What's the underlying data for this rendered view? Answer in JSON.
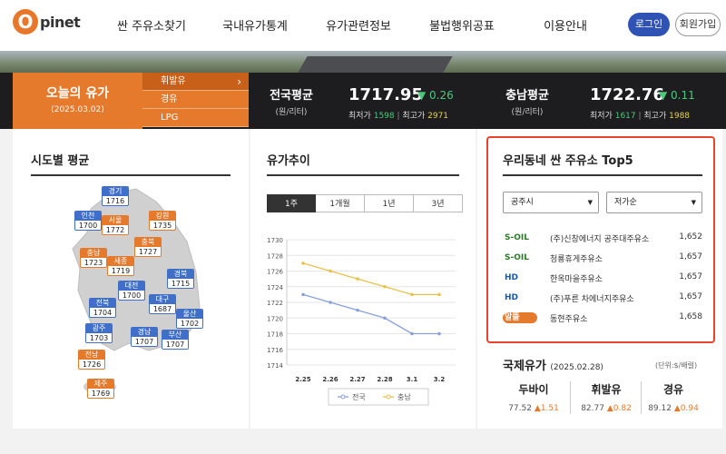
{
  "header": {
    "logo_letter": "O",
    "logo_text": "pinet",
    "nav": [
      "싼 주유소찾기",
      "국내유가통계",
      "유가관련정보",
      "불법행위공표",
      "이용안내"
    ],
    "login": "로그인",
    "join": "회원가입"
  },
  "today": {
    "title": "오늘의 유가",
    "date": "(2025.03.02)",
    "fuel_tabs": [
      "휘발유",
      "경유",
      "LPG"
    ],
    "active_fuel": "휘발유"
  },
  "national": {
    "label": "전국평균",
    "unit": "(원/리터)",
    "value": "1717.95",
    "change": "▼ 0.26",
    "min_label": "최저가",
    "min": "1598",
    "max_label": "최고가",
    "max": "2971"
  },
  "chungnam": {
    "label": "충남평균",
    "unit": "(원/리터)",
    "value": "1722.76",
    "change": "▼ 0.11",
    "min_label": "최저가",
    "min": "1617",
    "max_label": "최고가",
    "max": "1988"
  },
  "sections": {
    "regional": "시도별 평균",
    "trend": "유가추이",
    "top5": "우리동네 싼 주유소 Top5"
  },
  "regions": [
    {
      "name": "경기",
      "value": "1716",
      "color": "blue"
    },
    {
      "name": "인천",
      "value": "1700",
      "color": "blue"
    },
    {
      "name": "서울",
      "value": "1772",
      "color": "orange"
    },
    {
      "name": "강원",
      "value": "1735",
      "color": "orange"
    },
    {
      "name": "충북",
      "value": "1727",
      "color": "orange"
    },
    {
      "name": "충남",
      "value": "1723",
      "color": "orange"
    },
    {
      "name": "세종",
      "value": "1719",
      "color": "orange"
    },
    {
      "name": "경북",
      "value": "1715",
      "color": "blue"
    },
    {
      "name": "대전",
      "value": "1700",
      "color": "blue"
    },
    {
      "name": "전북",
      "value": "1704",
      "color": "blue"
    },
    {
      "name": "대구",
      "value": "1687",
      "color": "blue"
    },
    {
      "name": "울산",
      "value": "1702",
      "color": "blue"
    },
    {
      "name": "광주",
      "value": "1703",
      "color": "blue"
    },
    {
      "name": "경남",
      "value": "1707",
      "color": "blue"
    },
    {
      "name": "부산",
      "value": "1707",
      "color": "blue"
    },
    {
      "name": "전남",
      "value": "1726",
      "color": "orange"
    },
    {
      "name": "제주",
      "value": "1769",
      "color": "orange"
    }
  ],
  "period_tabs": [
    "1주",
    "1개월",
    "1년",
    "3년"
  ],
  "chart_data": {
    "type": "line",
    "categories": [
      "2.25",
      "2.26",
      "2.27",
      "2.28",
      "3.1",
      "3.2"
    ],
    "series": [
      {
        "name": "전국",
        "values": [
          1723,
          1722,
          1721,
          1720,
          1718,
          1718
        ],
        "color": "#8aa0d8"
      },
      {
        "name": "충남",
        "values": [
          1727,
          1726,
          1725,
          1724,
          1723,
          1723
        ],
        "color": "#e8c24a"
      }
    ],
    "yticks": [
      "1730",
      "1728",
      "1726",
      "1724",
      "1722",
      "1720",
      "1718",
      "1716",
      "1714"
    ],
    "ylim": [
      1714,
      1730
    ]
  },
  "top5": {
    "city_select": "공주시",
    "sort_select": "저가순",
    "stations": [
      {
        "brand": "S-OIL",
        "name": "(주)신창에너지 공주대주유소",
        "price": "1,652"
      },
      {
        "brand": "S-OIL",
        "name": "청룡휴게주유소",
        "price": "1,657"
      },
      {
        "brand": "HD",
        "name": "한옥마을주유소",
        "price": "1,657"
      },
      {
        "brand": "HD",
        "name": "(주)푸른 차에너지주유소",
        "price": "1,657"
      },
      {
        "brand": "알뜰",
        "name": "동현주유소",
        "price": "1,658"
      }
    ]
  },
  "intl": {
    "title": "국제유가",
    "date": "(2025.02.28)",
    "unit": "(단위:$/배럴)",
    "items": [
      {
        "name": "두바이",
        "value": "77.52",
        "change": "▲1.51"
      },
      {
        "name": "휘발유",
        "value": "82.77",
        "change": "▲0.82"
      },
      {
        "name": "경유",
        "value": "89.12",
        "change": "▲0.94"
      }
    ]
  }
}
